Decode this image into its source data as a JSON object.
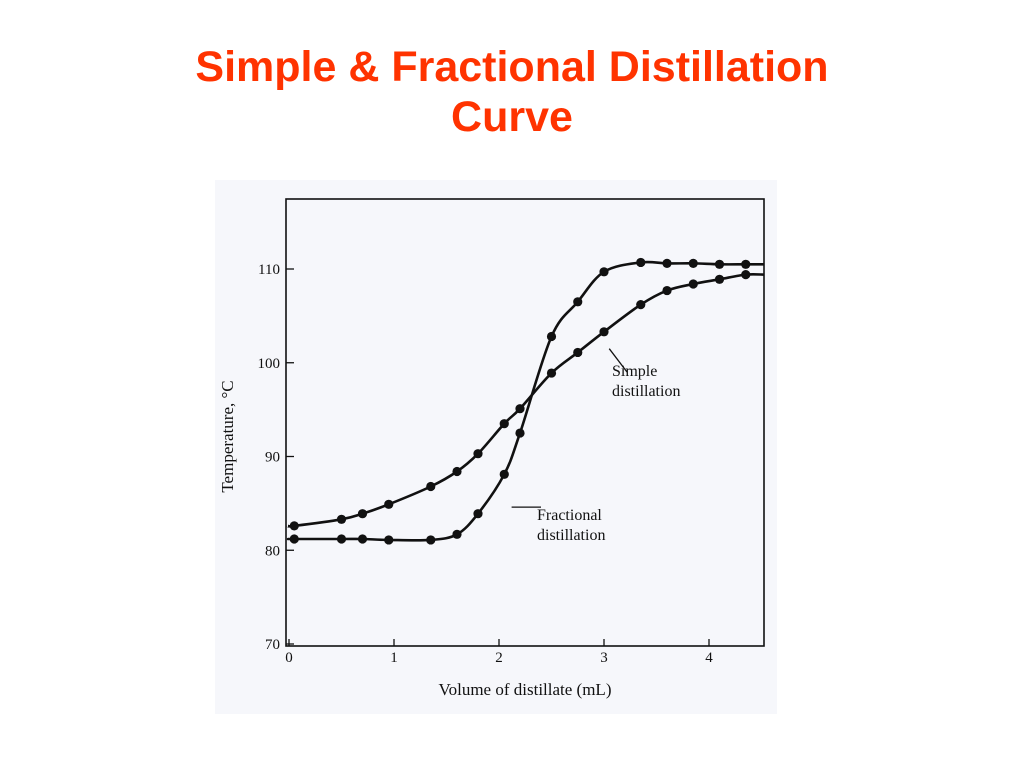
{
  "title_line1": "Simple & Fractional Distillation",
  "title_line2": "Curve",
  "colors": {
    "title": "#ff3300",
    "figure_bg": "#f6f7fb",
    "ink": "#111111"
  },
  "chart_data": {
    "type": "line",
    "xlabel": "Volume of distillate (mL)",
    "ylabel": "Temperature, °C",
    "xlim": [
      0,
      4.5
    ],
    "ylim": [
      70,
      110
    ],
    "x_ticks": [
      "0",
      "1",
      "2",
      "3",
      "4"
    ],
    "y_ticks": [
      "70",
      "80",
      "90",
      "100",
      "110"
    ],
    "grid": false,
    "series": [
      {
        "name": "Simple distillation",
        "label_lines": [
          "Simple",
          "distillation"
        ],
        "x": [
          0.05,
          0.5,
          0.7,
          0.95,
          1.35,
          1.6,
          1.8,
          2.05,
          2.2,
          2.5,
          2.75,
          3.0,
          3.35,
          3.6,
          3.85,
          4.1,
          4.35
        ],
        "y": [
          82.6,
          83.3,
          83.9,
          84.9,
          86.8,
          88.4,
          90.3,
          93.5,
          95.1,
          98.9,
          101.1,
          103.3,
          106.2,
          107.7,
          108.4,
          108.9,
          109.4
        ]
      },
      {
        "name": "Fractional distillation",
        "label_lines": [
          "Fractional",
          "distillation"
        ],
        "x": [
          0.05,
          0.5,
          0.7,
          0.95,
          1.35,
          1.6,
          1.8,
          2.05,
          2.2,
          2.5,
          2.75,
          3.0,
          3.35,
          3.6,
          3.85,
          4.1,
          4.35
        ],
        "y": [
          81.2,
          81.2,
          81.2,
          81.1,
          81.1,
          81.7,
          83.9,
          88.1,
          92.5,
          102.8,
          106.5,
          109.7,
          110.7,
          110.6,
          110.6,
          110.5,
          110.5
        ]
      }
    ]
  }
}
